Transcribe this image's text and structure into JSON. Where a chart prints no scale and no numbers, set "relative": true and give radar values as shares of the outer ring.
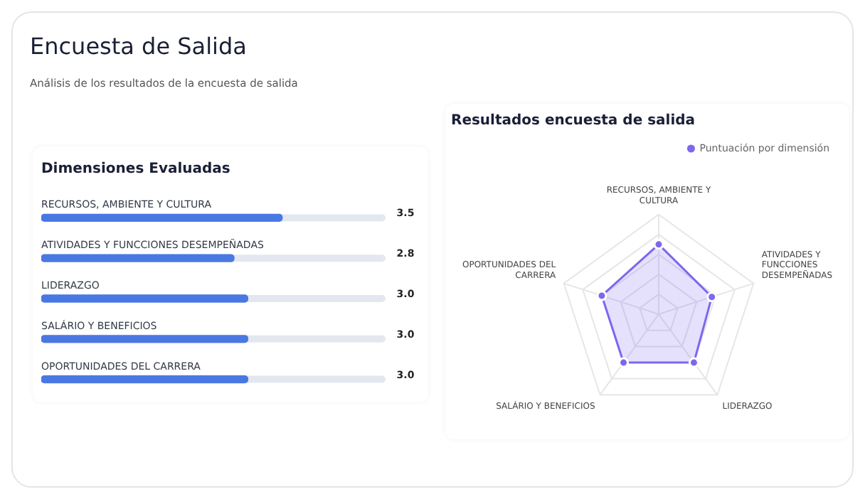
{
  "chart_data": [
    {
      "type": "other",
      "title": "Encuesta de Salida",
      "subtitle": "Análisis de los resultados de la encuesta de salida"
    },
    {
      "type": "bar",
      "title": "Dimensiones Evaluadas",
      "orientation": "horizontal",
      "categories": [
        "RECURSOS, AMBIENTE Y CULTURA",
        "ATIVIDADES Y FUNCCIONES DESEMPEÑADAS",
        "LIDERAZGO",
        "SALÁRIO Y BENEFICIOS",
        "OPORTUNIDADES DEL CARRERA"
      ],
      "values": [
        3.5,
        2.8,
        3.0,
        3.0,
        3.0
      ],
      "value_labels": [
        "3.5",
        "2.8",
        "3.0",
        "3.0",
        "3.0"
      ],
      "color": "#4a78e2",
      "xlim": [
        0,
        5
      ],
      "tick_labels": false
    },
    {
      "type": "radar",
      "title": "Resultados encuesta de salida",
      "categories": [
        "RECURSOS, AMBIENTE Y CULTURA",
        "ATIVIDADES Y FUNCCIONES DESEMPEÑADAS",
        "LIDERAZGO",
        "SALÁRIO Y BENEFICIOS",
        "OPORTUNIDADES DEL CARRERA"
      ],
      "relative": true,
      "grid": true,
      "legend": "top right",
      "marker": "circle",
      "series": [
        {
          "name": "Puntuación por dimensión",
          "color": "#7b68ee",
          "values": [
            0.7,
            0.56,
            0.6,
            0.6,
            0.6
          ]
        }
      ]
    }
  ]
}
